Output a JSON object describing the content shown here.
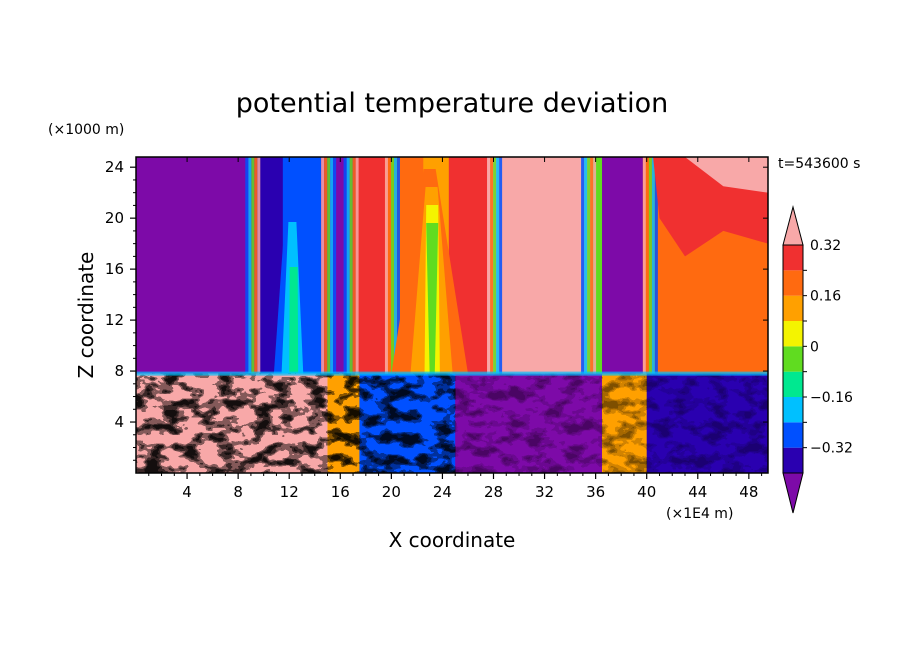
{
  "chart_data": {
    "type": "heatmap",
    "title": "potential temperature deviation",
    "xlabel": "X coordinate",
    "ylabel": "Z coordinate",
    "x_unit": "(×1E4 m)",
    "y_unit": "(×1000 m)",
    "time_label": "t=543600 s",
    "xlim": [
      0,
      49.5
    ],
    "ylim": [
      0,
      24.8
    ],
    "x_ticks": [
      "4",
      "8",
      "12",
      "16",
      "20",
      "24",
      "28",
      "32",
      "36",
      "40",
      "44",
      "48"
    ],
    "y_ticks": [
      "4",
      "8",
      "12",
      "16",
      "20",
      "24"
    ],
    "colorbar": {
      "levels": [
        -0.4,
        -0.32,
        -0.24,
        -0.16,
        -0.08,
        0,
        0.08,
        0.16,
        0.24,
        0.32,
        0.4
      ],
      "labels": [
        "0.32",
        "0.16",
        "0",
        "−0.16",
        "−0.32"
      ],
      "label_values": [
        0.32,
        0.16,
        0,
        -0.16,
        -0.32
      ],
      "colors": [
        "#7d0aa8",
        "#2a00b0",
        "#0050ff",
        "#00c0ff",
        "#00e890",
        "#60dc20",
        "#f4f400",
        "#ffa000",
        "#ff6a10",
        "#f03030",
        "#f8a8a8"
      ],
      "extend": "both"
    },
    "upper_layer_columns": [
      {
        "x": [
          0,
          1.2
        ],
        "value": -0.45
      },
      {
        "x": [
          1.2,
          9.5
        ],
        "value": -0.45
      },
      {
        "x": [
          9.5,
          11.5
        ],
        "value": -0.34
      },
      {
        "x": [
          11.5,
          14.5
        ],
        "value": -0.28
      },
      {
        "x": [
          14.5,
          17.2
        ],
        "value": -0.45
      },
      {
        "x": [
          17.2,
          19.5
        ],
        "value": 0.3
      },
      {
        "x": [
          19.5,
          22.5
        ],
        "value": 0.2
      },
      {
        "x": [
          22.5,
          24.5
        ],
        "value": 0.12
      },
      {
        "x": [
          24.5,
          27.5
        ],
        "value": 0.26
      },
      {
        "x": [
          27.5,
          35.8
        ],
        "value": 0.42
      },
      {
        "x": [
          35.8,
          36.5
        ],
        "value": -0.05
      },
      {
        "x": [
          36.5,
          39.7
        ],
        "value": -0.45
      },
      {
        "x": [
          39.7,
          49.5
        ],
        "value": 0.22
      }
    ],
    "lower_layer": {
      "z_top": 7.8,
      "description_values": [
        -0.45,
        -0.2,
        0.0,
        0.2,
        0.42
      ]
    }
  }
}
